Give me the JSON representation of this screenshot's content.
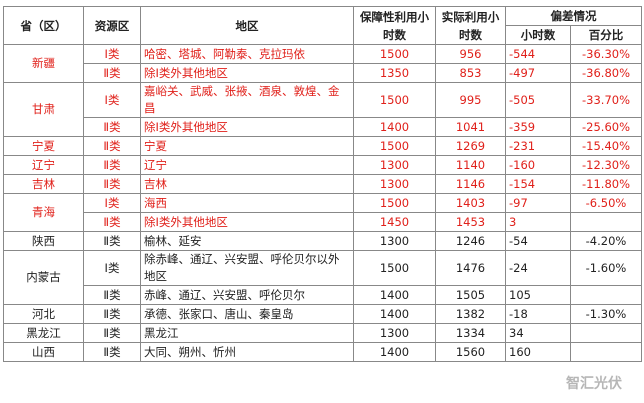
{
  "header": {
    "province": "省（区）",
    "zone": "资源区",
    "region": "地区",
    "guaranteed": "保障性利用小时数",
    "actual": "实际利用小时数",
    "deviation": "偏差情况",
    "deviation_hours": "小时数",
    "deviation_percent": "百分比"
  },
  "groups": [
    {
      "province": "新疆",
      "color": "#e0201a",
      "rows": [
        {
          "zone": "Ⅰ类",
          "region": "哈密、塔城、阿勒泰、克拉玛依",
          "guaranteed": 1500,
          "actual": 956,
          "hours": -544,
          "percent": "-36.30%"
        },
        {
          "zone": "Ⅱ类",
          "region": "除Ⅰ类外其他地区",
          "guaranteed": 1350,
          "actual": 853,
          "hours": -497,
          "percent": "-36.80%"
        }
      ]
    },
    {
      "province": "甘肃",
      "color": "#e0201a",
      "rows": [
        {
          "zone": "Ⅰ类",
          "region": "嘉峪关、武威、张掖、酒泉、敦煌、金昌",
          "guaranteed": 1500,
          "actual": 995,
          "hours": -505,
          "percent": "-33.70%"
        },
        {
          "zone": "Ⅱ类",
          "region": "除Ⅰ类外其他地区",
          "guaranteed": 1400,
          "actual": 1041,
          "hours": -359,
          "percent": "-25.60%"
        }
      ]
    },
    {
      "province": "宁夏",
      "color": "#e0201a",
      "rows": [
        {
          "zone": "Ⅱ类",
          "region": "宁夏",
          "guaranteed": 1500,
          "actual": 1269,
          "hours": -231,
          "percent": "-15.40%"
        }
      ]
    },
    {
      "province": "辽宁",
      "color": "#e0201a",
      "rows": [
        {
          "zone": "Ⅱ类",
          "region": "辽宁",
          "guaranteed": 1300,
          "actual": 1140,
          "hours": -160,
          "percent": "-12.30%"
        }
      ]
    },
    {
      "province": "吉林",
      "color": "#e0201a",
      "rows": [
        {
          "zone": "Ⅱ类",
          "region": "吉林",
          "guaranteed": 1300,
          "actual": 1146,
          "hours": -154,
          "percent": "-11.80%"
        }
      ]
    },
    {
      "province": "青海",
      "color": "#e0201a",
      "rows": [
        {
          "zone": "Ⅰ类",
          "region": "海西",
          "guaranteed": 1500,
          "actual": 1403,
          "hours": -97,
          "percent": "-6.50%"
        },
        {
          "zone": "Ⅱ类",
          "region": "除Ⅰ类外其他地区",
          "guaranteed": 1450,
          "actual": 1453,
          "hours": 3
        }
      ]
    },
    {
      "province": "陕西",
      "color": "#222222",
      "rows": [
        {
          "zone": "Ⅱ类",
          "region": "榆林、延安",
          "guaranteed": 1300,
          "actual": 1246,
          "hours": -54,
          "percent": "-4.20%"
        }
      ]
    },
    {
      "province": "内蒙古",
      "color": "#222222",
      "rows": [
        {
          "zone": "Ⅰ类",
          "region": "除赤峰、通辽、兴安盟、呼伦贝尔以外地区",
          "guaranteed": 1500,
          "actual": 1476,
          "hours": -24,
          "percent": "-1.60%"
        },
        {
          "zone": "Ⅱ类",
          "region": "赤峰、通辽、兴安盟、呼伦贝尔",
          "guaranteed": 1400,
          "actual": 1505,
          "hours": 105
        }
      ]
    },
    {
      "province": "河北",
      "color": "#222222",
      "rows": [
        {
          "zone": "Ⅱ类",
          "region": "承德、张家口、唐山、秦皇岛",
          "guaranteed": 1400,
          "actual": 1382,
          "hours": -18,
          "percent": "-1.30%"
        }
      ]
    },
    {
      "province": "黑龙江",
      "color": "#222222",
      "rows": [
        {
          "zone": "Ⅱ类",
          "region": "黑龙江",
          "guaranteed": 1300,
          "actual": 1334,
          "hours": 34
        }
      ]
    },
    {
      "province": "山西",
      "color": "#222222",
      "rows": [
        {
          "zone": "Ⅱ类",
          "region": "大同、朔州、忻州",
          "guaranteed": 1400,
          "actual": 1560,
          "hours": 160
        }
      ]
    }
  ],
  "watermark": "智汇光伏"
}
